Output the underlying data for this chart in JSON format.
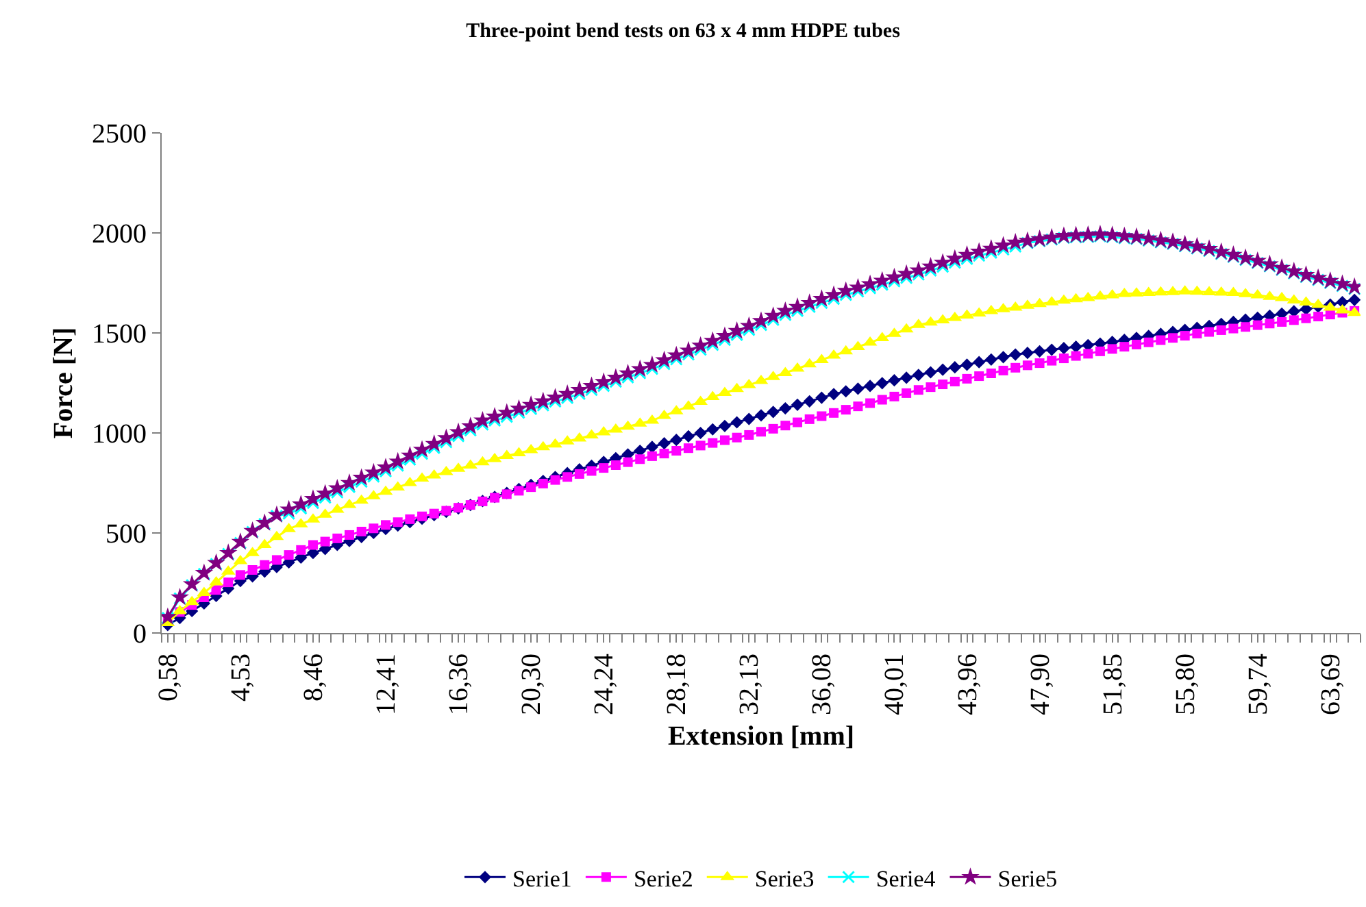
{
  "chart_data": {
    "type": "line",
    "title": "Three-point bend tests on 63 x 4 mm HDPE tubes",
    "xlabel": "Extension [mm]",
    "ylabel": "Force [N]",
    "categories": [
      "0,58",
      null,
      null,
      null,
      null,
      null,
      "4,53",
      null,
      null,
      null,
      null,
      null,
      "8,46",
      null,
      null,
      null,
      null,
      null,
      "12,41",
      null,
      null,
      null,
      null,
      null,
      "16,36",
      null,
      null,
      null,
      null,
      null,
      "20,30",
      null,
      null,
      null,
      null,
      null,
      "24,24",
      null,
      null,
      null,
      null,
      null,
      "28,18",
      null,
      null,
      null,
      null,
      null,
      "32,13",
      null,
      null,
      null,
      null,
      null,
      "36,08",
      null,
      null,
      null,
      null,
      null,
      "40,01",
      null,
      null,
      null,
      null,
      null,
      "43,96",
      null,
      null,
      null,
      null,
      null,
      "47,90",
      null,
      null,
      null,
      null,
      null,
      "51,85",
      null,
      null,
      null,
      null,
      null,
      "55,80",
      null,
      null,
      null,
      null,
      null,
      "59,74",
      null,
      null,
      null,
      null,
      null,
      "63,69",
      null,
      null
    ],
    "ylim": [
      0,
      2500
    ],
    "yticks": [
      0,
      500,
      1000,
      1500,
      2000,
      2500
    ],
    "legend": "bottom",
    "series": [
      {
        "name": "Serie1",
        "color": "#000080",
        "marker": "diamond",
        "values": [
          40,
          75,
          110,
          148,
          185,
          223,
          260,
          283,
          307,
          330,
          353,
          377,
          400,
          420,
          440,
          460,
          480,
          500,
          520,
          537,
          554,
          571,
          589,
          606,
          623,
          640,
          660,
          680,
          700,
          720,
          740,
          760,
          780,
          799,
          818,
          836,
          855,
          874,
          893,
          911,
          930,
          948,
          965,
          983,
          1000,
          1018,
          1035,
          1053,
          1070,
          1088,
          1105,
          1123,
          1141,
          1158,
          1176,
          1194,
          1208,
          1221,
          1235,
          1249,
          1263,
          1276,
          1290,
          1303,
          1316,
          1328,
          1341,
          1354,
          1367,
          1379,
          1392,
          1400,
          1408,
          1416,
          1424,
          1431,
          1439,
          1447,
          1455,
          1465,
          1475,
          1485,
          1495,
          1505,
          1515,
          1525,
          1535,
          1545,
          1555,
          1566,
          1576,
          1586,
          1596,
          1608,
          1619,
          1631,
          1642,
          1654,
          1665
        ]
      },
      {
        "name": "Serie2",
        "color": "#ff00ff",
        "marker": "square",
        "values": [
          70,
          105,
          140,
          178,
          215,
          253,
          290,
          315,
          340,
          365,
          390,
          415,
          440,
          457,
          473,
          490,
          507,
          523,
          540,
          554,
          569,
          583,
          597,
          611,
          626,
          640,
          658,
          676,
          694,
          711,
          729,
          747,
          765,
          780,
          795,
          810,
          825,
          839,
          854,
          869,
          884,
          897,
          911,
          924,
          937,
          950,
          964,
          977,
          990,
          1006,
          1021,
          1037,
          1053,
          1069,
          1084,
          1100,
          1116,
          1133,
          1149,
          1166,
          1182,
          1199,
          1215,
          1229,
          1243,
          1257,
          1271,
          1284,
          1298,
          1312,
          1326,
          1338,
          1349,
          1361,
          1373,
          1385,
          1396,
          1408,
          1420,
          1431,
          1442,
          1453,
          1464,
          1475,
          1486,
          1497,
          1505,
          1514,
          1522,
          1530,
          1539,
          1547,
          1555,
          1564,
          1573,
          1582,
          1592,
          1601,
          1610
        ]
      },
      {
        "name": "Serie3",
        "color": "#ffff00",
        "marker": "triangle",
        "values": [
          50,
          110,
          155,
          200,
          253,
          307,
          360,
          400,
          440,
          480,
          520,
          544,
          568,
          592,
          616,
          640,
          662,
          684,
          706,
          728,
          750,
          772,
          788,
          805,
          821,
          837,
          854,
          870,
          885,
          899,
          914,
          929,
          943,
          958,
          973,
          988,
          1003,
          1017,
          1032,
          1047,
          1062,
          1086,
          1109,
          1133,
          1156,
          1180,
          1200,
          1220,
          1240,
          1260,
          1280,
          1300,
          1322,
          1343,
          1365,
          1387,
          1408,
          1430,
          1452,
          1474,
          1496,
          1518,
          1540,
          1552,
          1563,
          1575,
          1587,
          1598,
          1610,
          1619,
          1627,
          1636,
          1645,
          1653,
          1662,
          1669,
          1675,
          1682,
          1688,
          1695,
          1698,
          1700,
          1703,
          1705,
          1708,
          1706,
          1704,
          1702,
          1700,
          1694,
          1688,
          1681,
          1675,
          1663,
          1652,
          1640,
          1627,
          1613,
          1600
        ]
      },
      {
        "name": "Serie4",
        "color": "#00ffff",
        "marker": "cross",
        "values": [
          75,
          173,
          239,
          295,
          345,
          395,
          450,
          505,
          545,
          585,
          597,
          623,
          650,
          677,
          703,
          730,
          756,
          782,
          808,
          837,
          867,
          896,
          925,
          954,
          984,
          1013,
          1042,
          1062,
          1081,
          1101,
          1120,
          1138,
          1157,
          1175,
          1195,
          1215,
          1235,
          1256,
          1278,
          1299,
          1320,
          1344,
          1368,
          1392,
          1416,
          1440,
          1465,
          1490,
          1515,
          1540,
          1565,
          1590,
          1610,
          1630,
          1650,
          1670,
          1690,
          1707,
          1724,
          1741,
          1758,
          1775,
          1792,
          1812,
          1831,
          1851,
          1870,
          1886,
          1901,
          1917,
          1932,
          1950,
          1959,
          1967,
          1975,
          1978,
          1980,
          1983,
          1979,
          1974,
          1970,
          1962,
          1953,
          1945,
          1933,
          1922,
          1910,
          1895,
          1880,
          1865,
          1850,
          1833,
          1815,
          1798,
          1780,
          1765,
          1750,
          1735,
          1720
        ]
      },
      {
        "name": "Serie5",
        "color": "#800080",
        "marker": "star",
        "values": [
          80,
          178,
          244,
          300,
          350,
          400,
          455,
          510,
          550,
          590,
          617,
          643,
          670,
          697,
          723,
          750,
          776,
          802,
          828,
          857,
          887,
          916,
          945,
          974,
          1004,
          1033,
          1062,
          1082,
          1101,
          1121,
          1140,
          1158,
          1177,
          1195,
          1215,
          1235,
          1255,
          1276,
          1298,
          1319,
          1340,
          1364,
          1388,
          1412,
          1436,
          1460,
          1485,
          1510,
          1535,
          1560,
          1585,
          1610,
          1630,
          1650,
          1670,
          1690,
          1710,
          1727,
          1744,
          1761,
          1778,
          1795,
          1812,
          1832,
          1851,
          1871,
          1890,
          1906,
          1921,
          1937,
          1952,
          1960,
          1969,
          1977,
          1985,
          1988,
          1990,
          1993,
          1989,
          1984,
          1980,
          1972,
          1963,
          1955,
          1943,
          1932,
          1920,
          1905,
          1890,
          1875,
          1860,
          1843,
          1825,
          1808,
          1790,
          1775,
          1760,
          1745,
          1730
        ]
      }
    ]
  }
}
